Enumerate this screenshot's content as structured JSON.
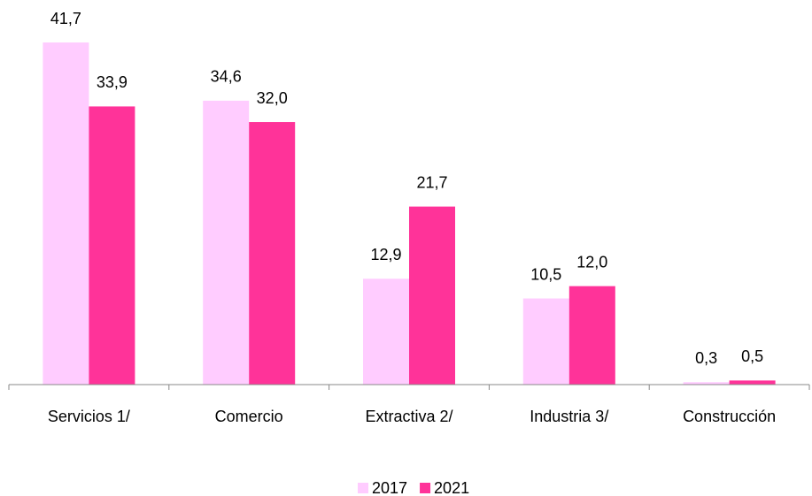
{
  "chart_data": {
    "type": "bar",
    "categories": [
      "Servicios 1/",
      "Comercio",
      "Extractiva 2/",
      "Industria 3/",
      "Construcción"
    ],
    "series": [
      {
        "name": "2017",
        "color": "#ffccff",
        "values": [
          41.7,
          34.6,
          12.9,
          10.5,
          0.3
        ],
        "value_labels": [
          "41,7",
          "34,6",
          "12,9",
          "10,5",
          "0,3"
        ]
      },
      {
        "name": "2021",
        "color": "#ff3399",
        "values": [
          33.9,
          32.0,
          21.7,
          12.0,
          0.5
        ],
        "value_labels": [
          "33,9",
          "32,0",
          "21,7",
          "12,0",
          "0,5"
        ]
      }
    ],
    "ylim": [
      0,
      45
    ],
    "legend": "bottom"
  }
}
